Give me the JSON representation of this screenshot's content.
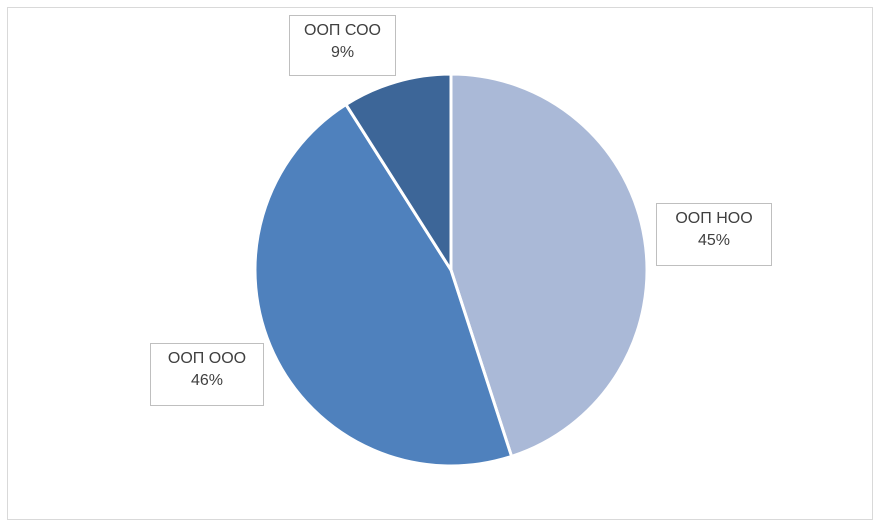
{
  "chart_data": {
    "type": "pie",
    "title": "",
    "slices": [
      {
        "name": "ООП НОО",
        "percent": "45%",
        "value": 45,
        "color": "#aab9d7"
      },
      {
        "name": "ООП ООО",
        "percent": "46%",
        "value": 46,
        "color": "#4f81bd"
      },
      {
        "name": "ООП СОО",
        "percent": "9%",
        "value": 9,
        "color": "#3d6698"
      }
    ],
    "start_angle_deg": 0,
    "direction": "clockwise",
    "slice_border_color": "#ffffff",
    "legend": "none"
  }
}
